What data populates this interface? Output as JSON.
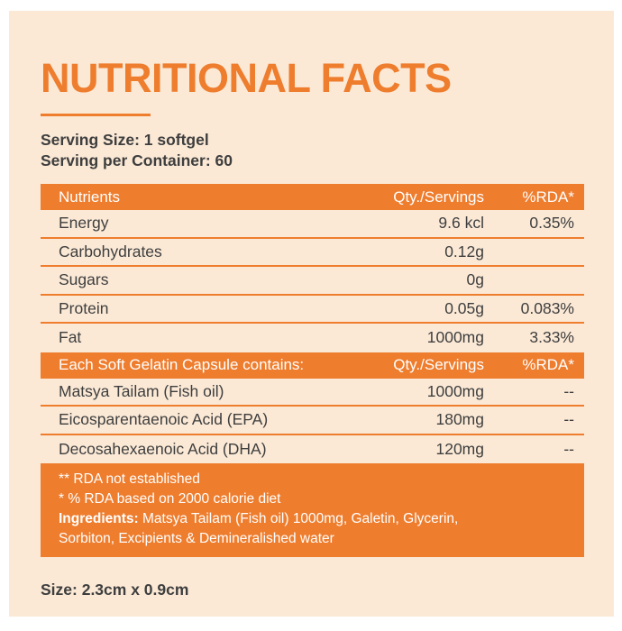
{
  "colors": {
    "accent_orange": "#EE7D2E",
    "card_cream": "#FBE9D6",
    "page_white": "#FFFFFF",
    "text_dark": "#3E3E3E",
    "header_text_white": "#FFFFFF"
  },
  "title": "NUTRITIONAL FACTS",
  "serving": {
    "size_line": "Serving Size: 1 softgel",
    "per_container_line": "Serving per Container: 60"
  },
  "table": {
    "header1": {
      "col1": "Nutrients",
      "col2": "Qty./Servings",
      "col3": "%RDA*"
    },
    "rows1": [
      {
        "name": "Energy",
        "qty": "9.6 kcl",
        "rda": "0.35%"
      },
      {
        "name": "Carbohydrates",
        "qty": "0.12g",
        "rda": ""
      },
      {
        "name": "Sugars",
        "qty": "0g",
        "rda": ""
      },
      {
        "name": "Protein",
        "qty": "0.05g",
        "rda": "0.083%"
      },
      {
        "name": "Fat",
        "qty": "1000mg",
        "rda": "3.33%"
      }
    ],
    "header2": {
      "col1": "Each Soft Gelatin Capsule contains:",
      "col2": "Qty./Servings",
      "col3": "%RDA*"
    },
    "rows2": [
      {
        "name": "Matsya Tailam (Fish oil)",
        "qty": "1000mg",
        "rda": "--"
      },
      {
        "name": "Eicosparentaenoic Acid (EPA)",
        "qty": "180mg",
        "rda": "--"
      },
      {
        "name": "Decosahexaenoic Acid (DHA)",
        "qty": "120mg",
        "rda": "--"
      }
    ]
  },
  "footnotes": {
    "line1": "** RDA not established",
    "line2": "* % RDA based on 2000 calorie diet",
    "ingredients_label": "Ingredients:",
    "ingredients_line1": " Matsya Tailam (Fish oil) 1000mg, Galetin, Glycerin,",
    "ingredients_line2": "Sorbiton, Excipients & Demineralished water"
  },
  "size_note": "Size: 2.3cm x 0.9cm"
}
